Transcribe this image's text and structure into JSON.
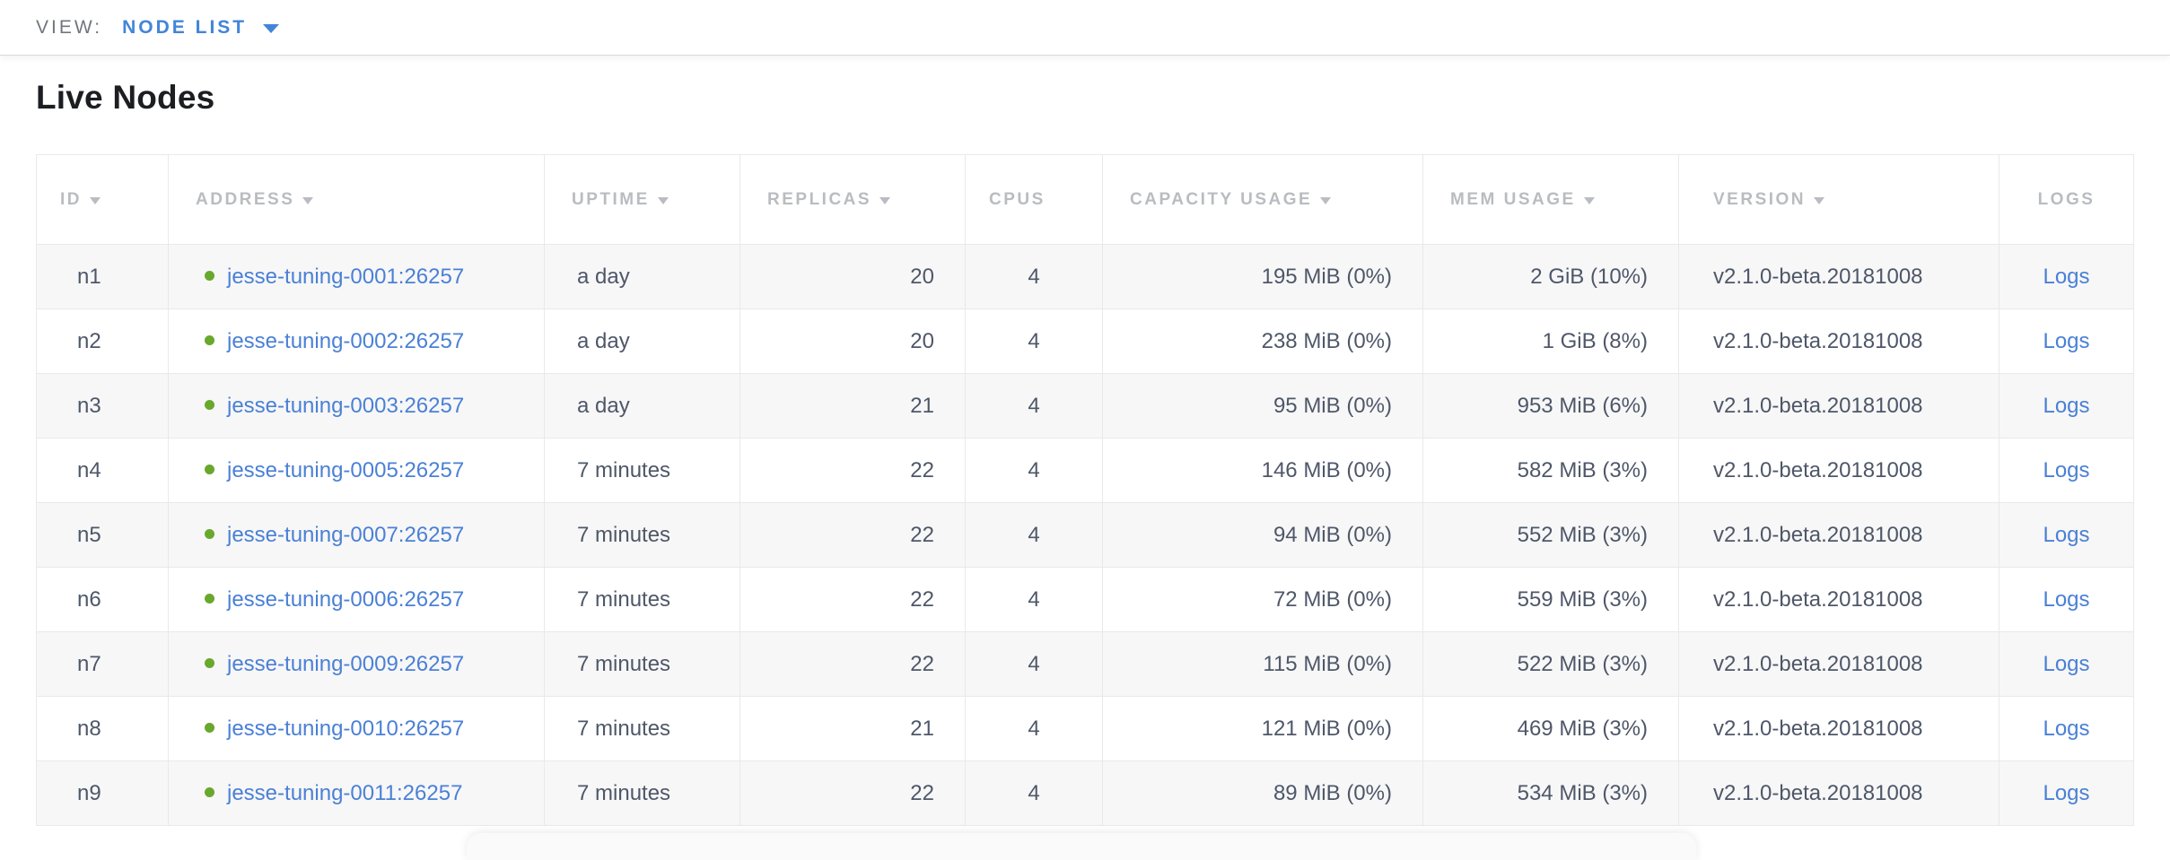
{
  "view_bar": {
    "label": "VIEW:",
    "selected": "NODE LIST",
    "dropdown_icon": "caret-down-icon"
  },
  "page": {
    "title": "Live Nodes"
  },
  "colors": {
    "accent_blue": "#4285d8",
    "link_blue": "#4a80d6",
    "live_dot_green": "#68a82c",
    "header_gray": "#b9bcc0",
    "cell_text": "#4e5769",
    "row_stripe": "#f7f7f7"
  },
  "table": {
    "columns": [
      {
        "key": "id",
        "label": "ID",
        "sortable": true
      },
      {
        "key": "address",
        "label": "ADDRESS",
        "sortable": true
      },
      {
        "key": "uptime",
        "label": "UPTIME",
        "sortable": true
      },
      {
        "key": "replicas",
        "label": "REPLICAS",
        "sortable": true
      },
      {
        "key": "cpus",
        "label": "CPUS",
        "sortable": false
      },
      {
        "key": "capacity",
        "label": "CAPACITY USAGE",
        "sortable": true
      },
      {
        "key": "mem",
        "label": "MEM USAGE",
        "sortable": true
      },
      {
        "key": "version",
        "label": "VERSION",
        "sortable": true
      },
      {
        "key": "logs",
        "label": "LOGS",
        "sortable": false
      }
    ],
    "rows": [
      {
        "id": "n1",
        "status": "live",
        "address": "jesse-tuning-0001:26257",
        "uptime": "a day",
        "replicas": "20",
        "cpus": "4",
        "capacity": "195 MiB (0%)",
        "mem": "2 GiB (10%)",
        "version": "v2.1.0-beta.20181008",
        "logs": "Logs"
      },
      {
        "id": "n2",
        "status": "live",
        "address": "jesse-tuning-0002:26257",
        "uptime": "a day",
        "replicas": "20",
        "cpus": "4",
        "capacity": "238 MiB (0%)",
        "mem": "1 GiB (8%)",
        "version": "v2.1.0-beta.20181008",
        "logs": "Logs"
      },
      {
        "id": "n3",
        "status": "live",
        "address": "jesse-tuning-0003:26257",
        "uptime": "a day",
        "replicas": "21",
        "cpus": "4",
        "capacity": "95 MiB (0%)",
        "mem": "953 MiB (6%)",
        "version": "v2.1.0-beta.20181008",
        "logs": "Logs"
      },
      {
        "id": "n4",
        "status": "live",
        "address": "jesse-tuning-0005:26257",
        "uptime": "7 minutes",
        "replicas": "22",
        "cpus": "4",
        "capacity": "146 MiB (0%)",
        "mem": "582 MiB (3%)",
        "version": "v2.1.0-beta.20181008",
        "logs": "Logs"
      },
      {
        "id": "n5",
        "status": "live",
        "address": "jesse-tuning-0007:26257",
        "uptime": "7 minutes",
        "replicas": "22",
        "cpus": "4",
        "capacity": "94 MiB (0%)",
        "mem": "552 MiB (3%)",
        "version": "v2.1.0-beta.20181008",
        "logs": "Logs"
      },
      {
        "id": "n6",
        "status": "live",
        "address": "jesse-tuning-0006:26257",
        "uptime": "7 minutes",
        "replicas": "22",
        "cpus": "4",
        "capacity": "72 MiB (0%)",
        "mem": "559 MiB (3%)",
        "version": "v2.1.0-beta.20181008",
        "logs": "Logs"
      },
      {
        "id": "n7",
        "status": "live",
        "address": "jesse-tuning-0009:26257",
        "uptime": "7 minutes",
        "replicas": "22",
        "cpus": "4",
        "capacity": "115 MiB (0%)",
        "mem": "522 MiB (3%)",
        "version": "v2.1.0-beta.20181008",
        "logs": "Logs"
      },
      {
        "id": "n8",
        "status": "live",
        "address": "jesse-tuning-0010:26257",
        "uptime": "7 minutes",
        "replicas": "21",
        "cpus": "4",
        "capacity": "121 MiB (0%)",
        "mem": "469 MiB (3%)",
        "version": "v2.1.0-beta.20181008",
        "logs": "Logs"
      },
      {
        "id": "n9",
        "status": "live",
        "address": "jesse-tuning-0011:26257",
        "uptime": "7 minutes",
        "replicas": "22",
        "cpus": "4",
        "capacity": "89 MiB (0%)",
        "mem": "534 MiB (3%)",
        "version": "v2.1.0-beta.20181008",
        "logs": "Logs"
      }
    ]
  }
}
